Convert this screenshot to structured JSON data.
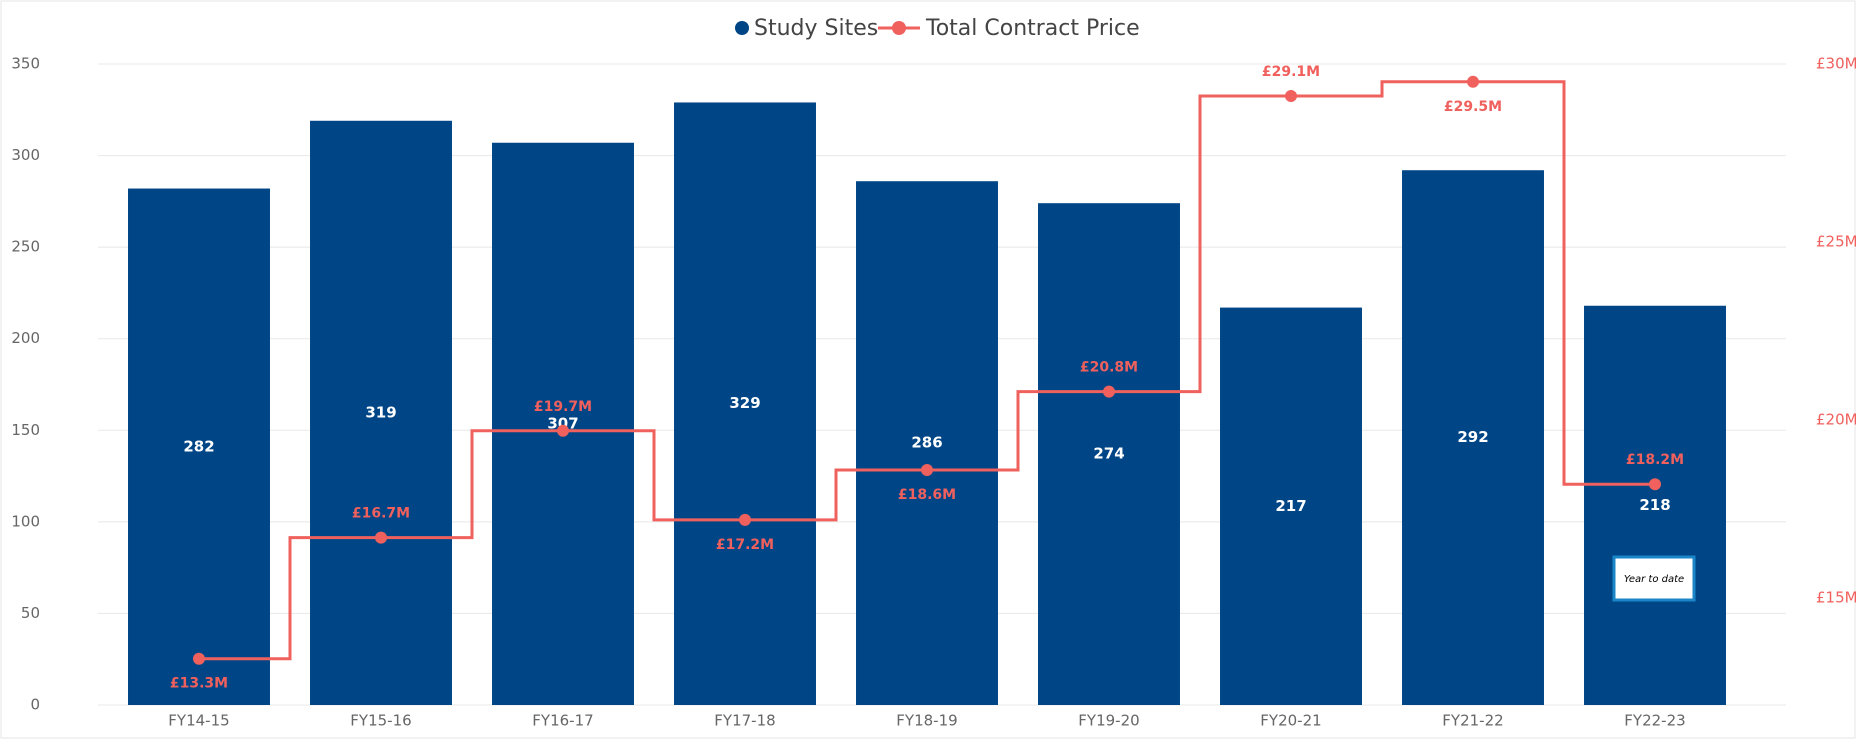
{
  "chart_data": {
    "type": "bar-line",
    "categories": [
      "FY14-15",
      "FY15-16",
      "FY16-17",
      "FY17-18",
      "FY18-19",
      "FY19-20",
      "FY20-21",
      "FY21-22",
      "FY22-23"
    ],
    "series": [
      {
        "name": "Study Sites",
        "color": "#004586",
        "values": [
          282,
          319,
          307,
          329,
          286,
          274,
          217,
          292,
          218
        ]
      },
      {
        "name": "Total Contract Price",
        "color": "#f0605d",
        "axis": "y2",
        "line": "step",
        "values": [
          13.3,
          16.7,
          19.7,
          17.2,
          18.6,
          20.8,
          29.1,
          29.5,
          18.2
        ],
        "value_labels": [
          "£13.3M",
          "£16.7M",
          "£19.7M",
          "£17.2M",
          "£18.6M",
          "£20.8M",
          "£29.1M",
          "£29.5M",
          "£18.2M"
        ]
      }
    ],
    "ylim": [
      0,
      350
    ],
    "yticks": [
      0,
      50,
      100,
      150,
      200,
      250,
      300,
      350
    ],
    "y2lim": [
      12,
      30
    ],
    "y2ticks": [
      {
        "value": 15,
        "label": "£15M"
      },
      {
        "value": 20,
        "label": "£20M"
      },
      {
        "value": 25,
        "label": "£25M"
      },
      {
        "value": 30,
        "label": "£30M"
      }
    ],
    "grid": true,
    "legend": "top",
    "annotation": "Year to date"
  }
}
